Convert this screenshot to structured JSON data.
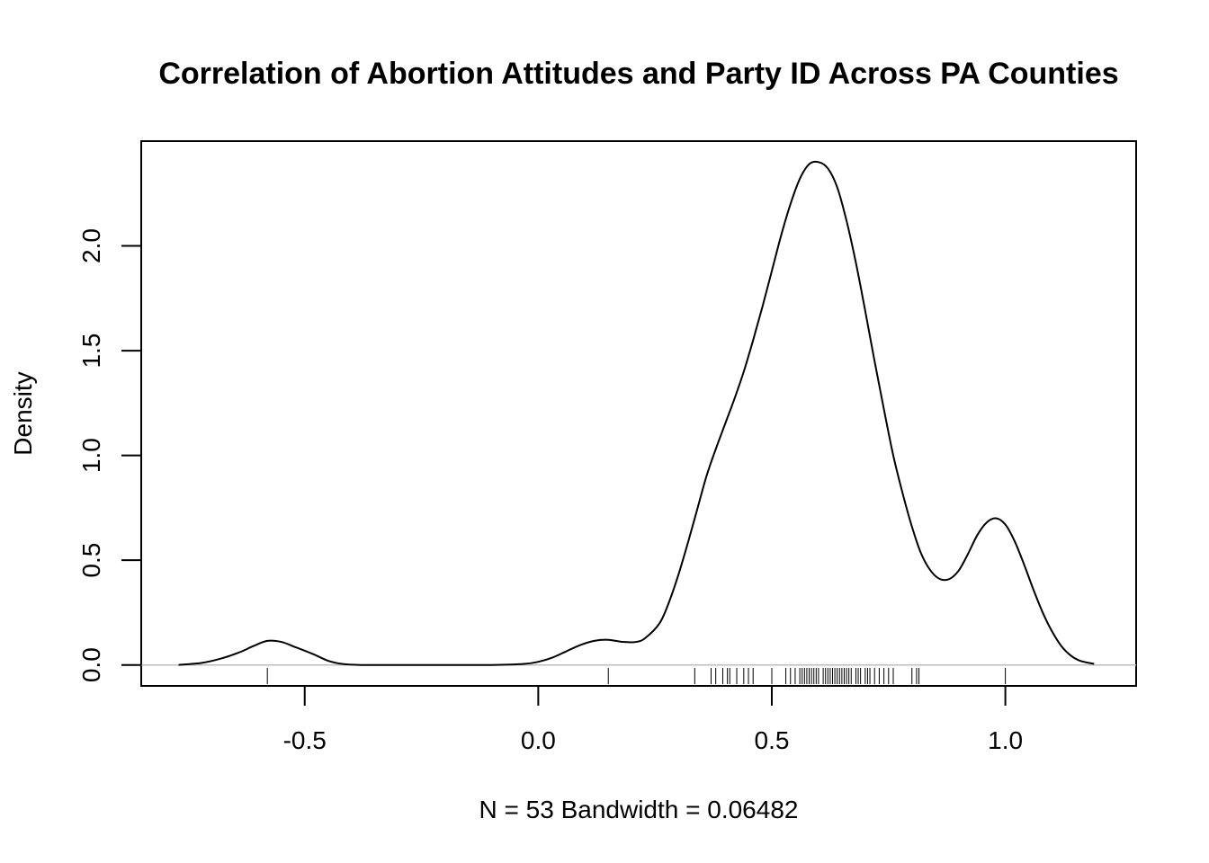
{
  "chart_data": {
    "type": "line",
    "title": "Correlation of Abortion Attitudes and Party ID Across PA Counties",
    "xlabel": "N = 53   Bandwidth = 0.06482",
    "ylabel": "Density",
    "xlim": [
      -0.85,
      1.28
    ],
    "ylim": [
      -0.1,
      2.5
    ],
    "x_ticks": [
      -0.5,
      0.0,
      0.5,
      1.0
    ],
    "x_tick_labels": [
      "-0.5",
      "0.0",
      "0.5",
      "1.0"
    ],
    "y_ticks": [
      0.0,
      0.5,
      1.0,
      1.5,
      2.0
    ],
    "y_tick_labels": [
      "0.0",
      "0.5",
      "1.0",
      "1.5",
      "2.0"
    ],
    "grid": false,
    "zero_line": true,
    "line_color": "#000000",
    "zero_line_color": "#bebebe",
    "series": [
      {
        "x": [
          -0.77,
          -0.72,
          -0.68,
          -0.64,
          -0.61,
          -0.58,
          -0.55,
          -0.52,
          -0.48,
          -0.45,
          -0.42,
          -0.38,
          -0.3,
          -0.2,
          -0.1,
          -0.03,
          0.0,
          0.03,
          0.06,
          0.09,
          0.12,
          0.15,
          0.18,
          0.21,
          0.23,
          0.26,
          0.28,
          0.3,
          0.32,
          0.34,
          0.36,
          0.38,
          0.4,
          0.42,
          0.44,
          0.46,
          0.48,
          0.5,
          0.52,
          0.54,
          0.56,
          0.58,
          0.6,
          0.62,
          0.64,
          0.66,
          0.68,
          0.7,
          0.72,
          0.74,
          0.76,
          0.78,
          0.8,
          0.82,
          0.84,
          0.86,
          0.88,
          0.9,
          0.92,
          0.94,
          0.96,
          0.98,
          1.0,
          1.02,
          1.04,
          1.06,
          1.08,
          1.1,
          1.12,
          1.14,
          1.16,
          1.19
        ],
        "y": [
          0.0,
          0.01,
          0.03,
          0.06,
          0.09,
          0.115,
          0.11,
          0.085,
          0.05,
          0.02,
          0.005,
          0.0,
          0.0,
          0.0,
          0.0,
          0.005,
          0.015,
          0.035,
          0.065,
          0.095,
          0.115,
          0.12,
          0.11,
          0.11,
          0.13,
          0.2,
          0.3,
          0.43,
          0.58,
          0.74,
          0.9,
          1.03,
          1.15,
          1.27,
          1.4,
          1.55,
          1.71,
          1.88,
          2.05,
          2.2,
          2.32,
          2.39,
          2.4,
          2.37,
          2.28,
          2.12,
          1.92,
          1.69,
          1.45,
          1.22,
          1.0,
          0.82,
          0.66,
          0.53,
          0.45,
          0.41,
          0.41,
          0.45,
          0.53,
          0.62,
          0.68,
          0.7,
          0.67,
          0.59,
          0.48,
          0.36,
          0.25,
          0.16,
          0.09,
          0.045,
          0.02,
          0.005
        ]
      }
    ],
    "rug": [
      -0.58,
      0.15,
      0.335,
      0.37,
      0.38,
      0.395,
      0.405,
      0.41,
      0.425,
      0.44,
      0.45,
      0.46,
      0.5,
      0.53,
      0.54,
      0.55,
      0.56,
      0.565,
      0.57,
      0.575,
      0.58,
      0.585,
      0.59,
      0.595,
      0.6,
      0.61,
      0.615,
      0.62,
      0.625,
      0.63,
      0.635,
      0.64,
      0.645,
      0.65,
      0.655,
      0.66,
      0.665,
      0.67,
      0.68,
      0.685,
      0.69,
      0.7,
      0.705,
      0.71,
      0.72,
      0.73,
      0.74,
      0.75,
      0.76,
      0.8,
      0.81,
      0.815,
      1.0
    ]
  }
}
